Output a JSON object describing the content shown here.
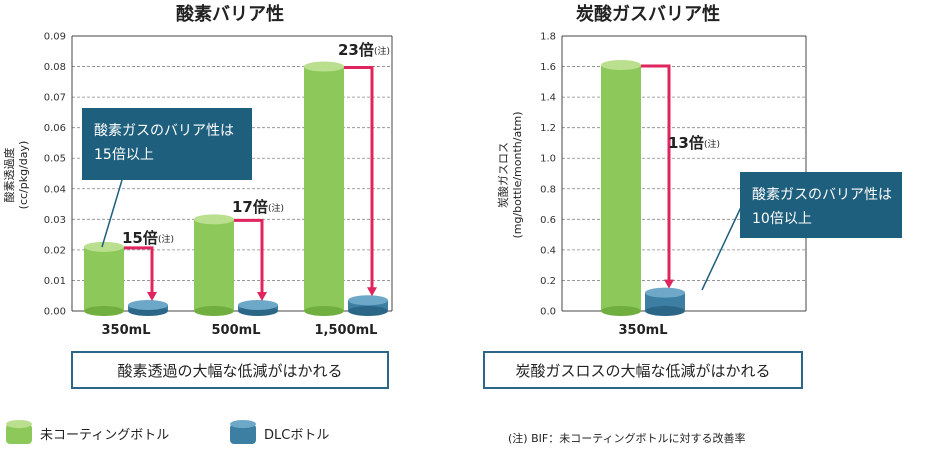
{
  "chart_data": [
    {
      "type": "bar",
      "title": "酸素バリア性",
      "ylabel": "酸素透過度",
      "yunit": "(cc/pkg/day)",
      "ylim": [
        0,
        0.09
      ],
      "yticks": [
        "0.00",
        "0.01",
        "0.02",
        "0.03",
        "0.04",
        "0.05",
        "0.06",
        "0.07",
        "0.08",
        "0.09"
      ],
      "grid": true,
      "categories": [
        "350mL",
        "500mL",
        "1,500mL"
      ],
      "series": [
        {
          "name": "未コーティングボトル",
          "values": [
            0.021,
            0.03,
            0.08
          ]
        },
        {
          "name": "DLCボトル",
          "values": [
            0.0014,
            0.0018,
            0.0035
          ]
        }
      ],
      "ratios": [
        "15倍",
        "17倍",
        "23倍"
      ],
      "ratio_note": "(注)",
      "callout": [
        "酸素ガスのバリア性は",
        "15倍以上"
      ],
      "summary": "酸素透過の大幅な低減がはかれる"
    },
    {
      "type": "bar",
      "title": "炭酸ガスバリア性",
      "ylabel": "炭酸ガスロス",
      "yunit": "(mg/bottle/month/atm)",
      "ylim": [
        0,
        1.8
      ],
      "yticks": [
        "0.0",
        "0.2",
        "0.4",
        "0.6",
        "0.8",
        "1.0",
        "1.2",
        "1.4",
        "1.6",
        "1.8"
      ],
      "grid": true,
      "categories": [
        "350mL"
      ],
      "series": [
        {
          "name": "未コーティングボトル",
          "values": [
            1.61
          ]
        },
        {
          "name": "DLCボトル",
          "values": [
            0.12
          ]
        }
      ],
      "ratios": [
        "13倍"
      ],
      "ratio_note": "(注)",
      "callout": [
        "酸素ガスのバリア性は",
        "10倍以上"
      ],
      "summary": "炭酸ガスロスの大幅な低減がはかれる"
    }
  ],
  "legend": [
    {
      "label": "未コーティングボトル",
      "color": "#8dc85a"
    },
    {
      "label": "DLCボトル",
      "color": "#3d7fa3"
    }
  ],
  "footnote": "(注) BIF：未コーティングボトルに対する改善率",
  "colors": {
    "green": "#8dc85a",
    "blue": "#3d7fa3",
    "arrow": "#e0245e",
    "callout": "#1f5f7e",
    "box_border": "#2d6787"
  }
}
